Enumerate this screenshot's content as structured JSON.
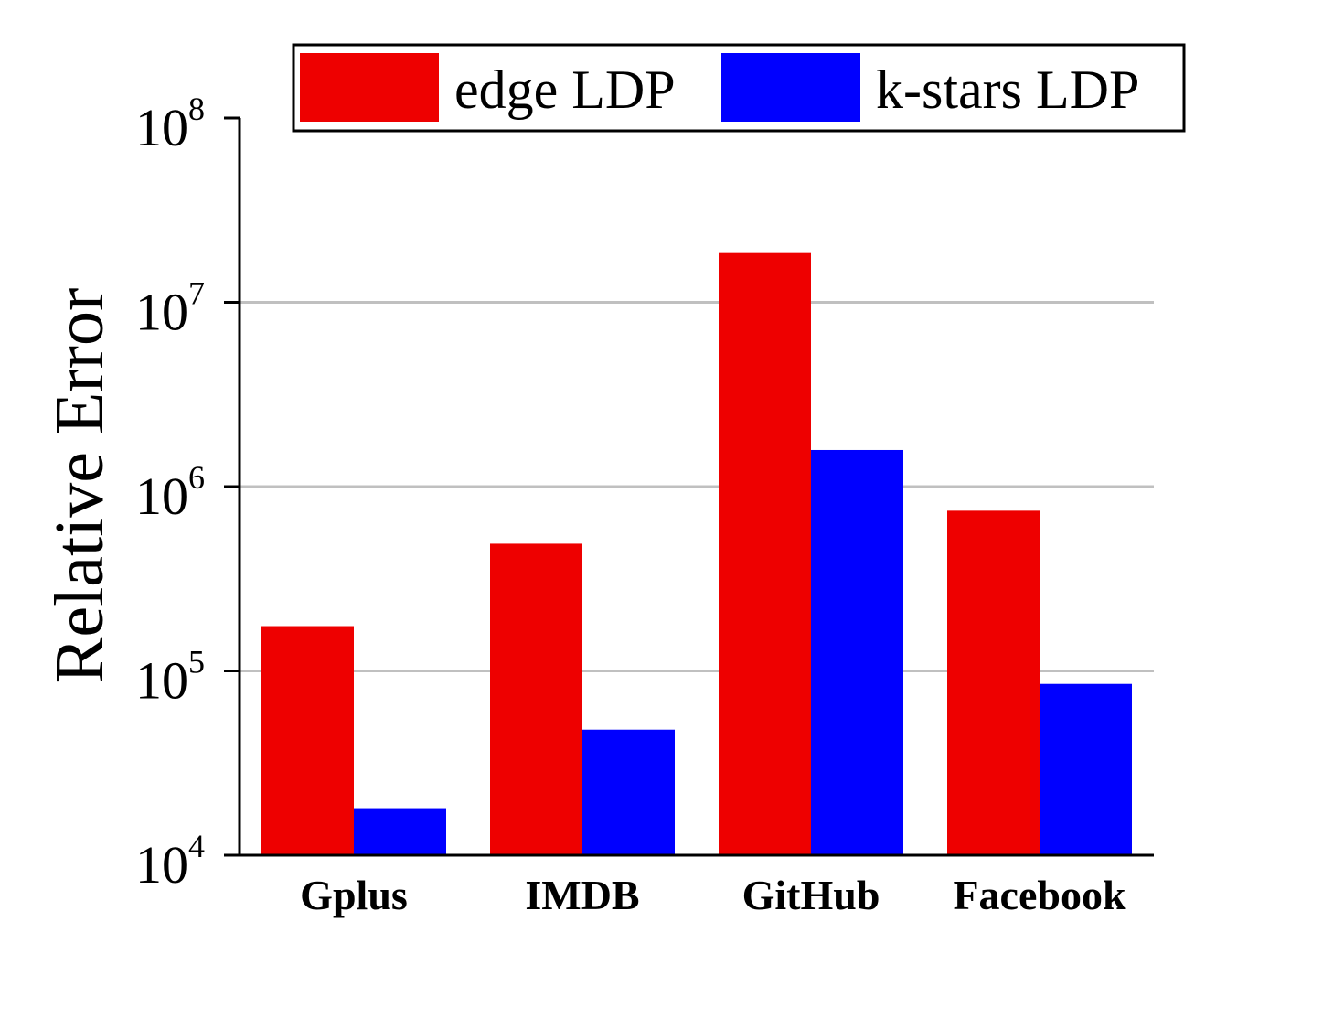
{
  "chart_data": {
    "type": "bar",
    "ylabel": "Relative Error",
    "xlabel": "",
    "yscale": "log",
    "ylim": [
      10000,
      100000000
    ],
    "ytick_labels": [
      {
        "base": "10",
        "exp": "4"
      },
      {
        "base": "10",
        "exp": "5"
      },
      {
        "base": "10",
        "exp": "6"
      },
      {
        "base": "10",
        "exp": "7"
      },
      {
        "base": "10",
        "exp": "8"
      }
    ],
    "grid": "horizontal",
    "legend_position": "top",
    "categories": [
      "Gplus",
      "IMDB",
      "GitHub",
      "Facebook"
    ],
    "series": [
      {
        "name": "edge LDP",
        "color": "#ee0000",
        "values": [
          175000,
          490000,
          18500000,
          740000
        ]
      },
      {
        "name": "k-stars LDP",
        "color": "#0000ff",
        "values": [
          18000,
          48000,
          1580000,
          85000
        ]
      }
    ]
  }
}
